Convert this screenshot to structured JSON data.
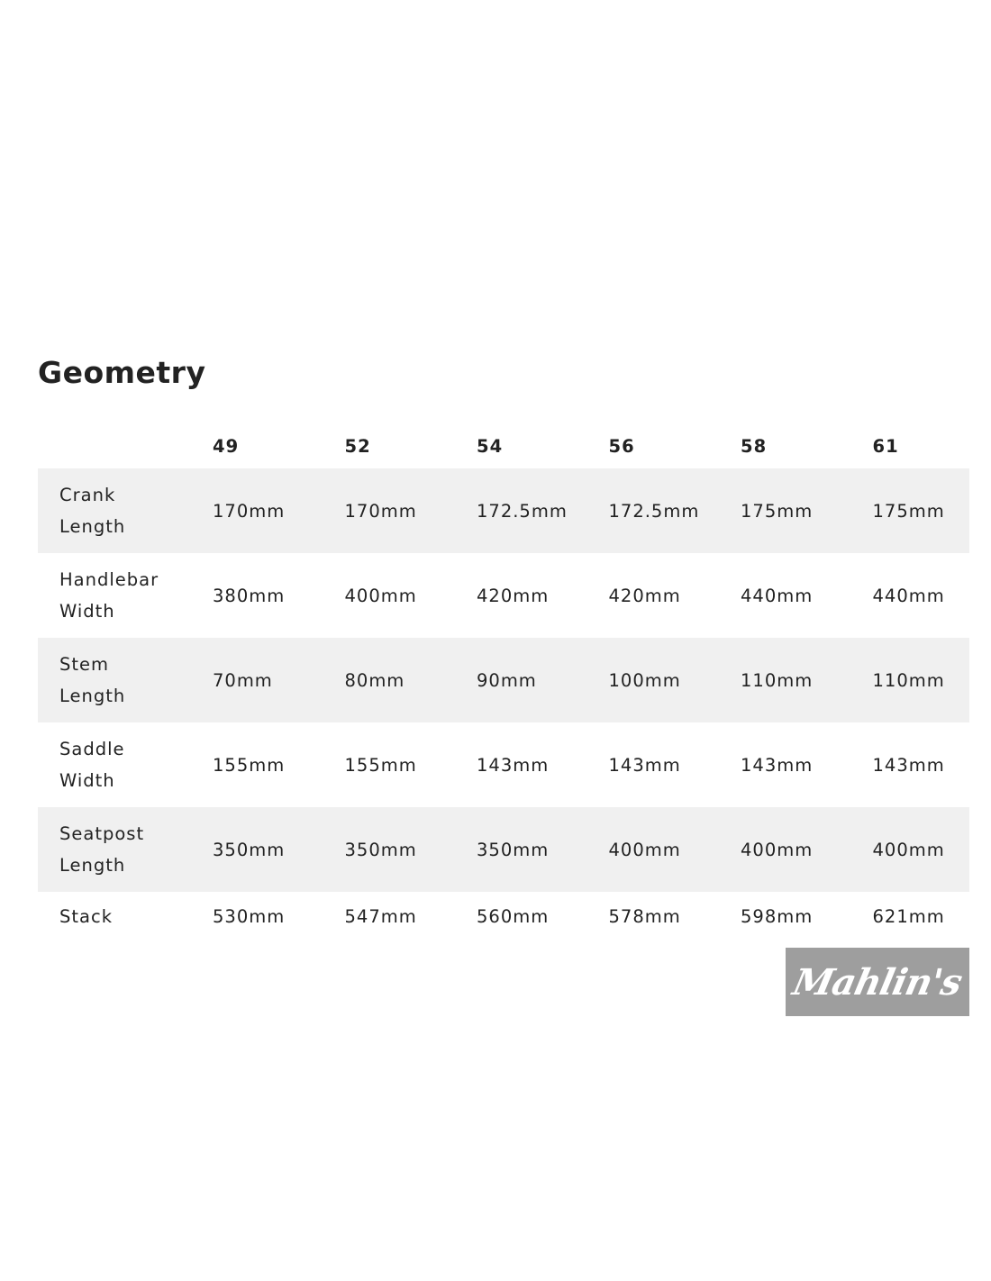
{
  "title": "Geometry",
  "sizes": [
    "49",
    "52",
    "54",
    "56",
    "58",
    "61"
  ],
  "rows": [
    {
      "label": [
        "Crank",
        "Length"
      ],
      "values": [
        "170mm",
        "170mm",
        "172.5mm",
        "172.5mm",
        "175mm",
        "175mm"
      ]
    },
    {
      "label": [
        "Handlebar",
        "Width"
      ],
      "values": [
        "380mm",
        "400mm",
        "420mm",
        "420mm",
        "440mm",
        "440mm"
      ]
    },
    {
      "label": [
        "Stem",
        "Length"
      ],
      "values": [
        "70mm",
        "80mm",
        "90mm",
        "100mm",
        "110mm",
        "110mm"
      ]
    },
    {
      "label": [
        "Saddle",
        "Width"
      ],
      "values": [
        "155mm",
        "155mm",
        "143mm",
        "143mm",
        "143mm",
        "143mm"
      ]
    },
    {
      "label": [
        "Seatpost",
        "Length"
      ],
      "values": [
        "350mm",
        "350mm",
        "350mm",
        "400mm",
        "400mm",
        "400mm"
      ]
    },
    {
      "label": [
        "Stack"
      ],
      "values": [
        "530mm",
        "547mm",
        "560mm",
        "578mm",
        "598mm",
        "621mm"
      ]
    }
  ],
  "watermark": "Mahlin's",
  "colors": {
    "row_alt": "#f0f0f0",
    "text": "#222222"
  }
}
